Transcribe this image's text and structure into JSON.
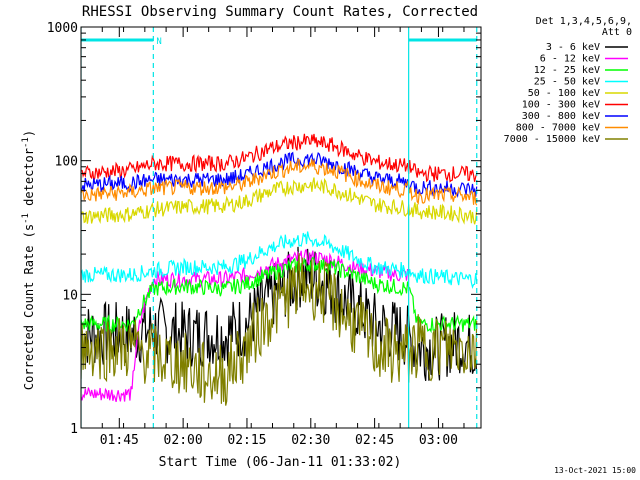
{
  "chart_data": {
    "type": "line",
    "title": "RHESSI Observing Summary Count Rates, Corrected",
    "xlabel": "Start Time (06-Jan-11 01:33:02)",
    "ylabel": "Corrected Count Rate (s⁻¹ detector⁻¹)",
    "ylabel_base": "Corrected Count Rate (s",
    "ylabel_sup1": "-1",
    "ylabel_mid": " detector",
    "ylabel_sup2": "-1",
    "ylabel_end": ")",
    "yscale": "log",
    "xlim": [
      "01:36",
      "03:10"
    ],
    "ylim": [
      1,
      1000
    ],
    "x_ticks": [
      "01:45",
      "02:00",
      "02:15",
      "02:30",
      "02:45",
      "03:00"
    ],
    "y_ticks": [
      {
        "label": "1",
        "value": 1
      },
      {
        "label": "10",
        "value": 10
      },
      {
        "label": "100",
        "value": 100
      },
      {
        "label": "1000",
        "value": 1000
      }
    ],
    "legend_header": [
      "Det 1,3,4,5,6,9,",
      "Att 0"
    ],
    "legend_position": "right",
    "night_markers": [
      {
        "time": "01:36",
        "color": "#00e5e5",
        "style": "solid"
      },
      {
        "time": "01:53",
        "color": "#00e5e5",
        "style": "dashed"
      },
      {
        "time": "02:53",
        "color": "#00e5e5",
        "style": "solid"
      },
      {
        "time": "03:09",
        "color": "#00e5e5",
        "style": "dashed"
      }
    ],
    "night_bars": [
      {
        "start": "01:36",
        "end": "01:53",
        "value": 800
      },
      {
        "start": "02:53",
        "end": "03:09",
        "value": 800
      }
    ],
    "annotation": "N",
    "annotation_time": "01:53",
    "series": [
      {
        "name": "3 - 6 keV",
        "color": "#000000",
        "line": "black",
        "points": [
          [
            "01:36",
            5
          ],
          [
            "01:48",
            5
          ],
          [
            "01:53",
            5.5
          ],
          [
            "02:00",
            5
          ],
          [
            "02:05",
            5
          ],
          [
            "02:10",
            5
          ],
          [
            "02:15",
            6
          ],
          [
            "02:20",
            9
          ],
          [
            "02:25",
            12
          ],
          [
            "02:28",
            14
          ],
          [
            "02:32",
            13
          ],
          [
            "02:38",
            9
          ],
          [
            "02:45",
            6
          ],
          [
            "02:52",
            5
          ],
          [
            "02:55",
            4
          ],
          [
            "03:00",
            4
          ],
          [
            "03:05",
            4.5
          ],
          [
            "03:09",
            4
          ]
        ]
      },
      {
        "name": "6 - 12 keV",
        "color": "#ff00ff",
        "line": "magenta",
        "points": [
          [
            "01:36",
            1.8
          ],
          [
            "01:48",
            1.8
          ],
          [
            "01:53",
            13
          ],
          [
            "02:00",
            13
          ],
          [
            "02:10",
            13
          ],
          [
            "02:15",
            14
          ],
          [
            "02:20",
            16
          ],
          [
            "02:25",
            18
          ],
          [
            "02:30",
            19
          ],
          [
            "02:35",
            18
          ],
          [
            "02:40",
            16
          ],
          [
            "02:45",
            15
          ],
          [
            "02:50",
            14
          ],
          [
            "02:53",
            14
          ]
        ]
      },
      {
        "name": "12 - 25 keV",
        "color": "#00ff00",
        "line": "green",
        "points": [
          [
            "01:36",
            6
          ],
          [
            "01:48",
            6
          ],
          [
            "01:53",
            11
          ],
          [
            "02:00",
            11.5
          ],
          [
            "02:10",
            11
          ],
          [
            "02:15",
            12
          ],
          [
            "02:20",
            14
          ],
          [
            "02:25",
            16
          ],
          [
            "02:30",
            17
          ],
          [
            "02:35",
            16
          ],
          [
            "02:40",
            14
          ],
          [
            "02:45",
            12
          ],
          [
            "02:53",
            11
          ],
          [
            "02:55",
            6
          ],
          [
            "03:05",
            6
          ],
          [
            "03:09",
            6
          ]
        ]
      },
      {
        "name": "25 - 50 keV",
        "color": "#00ffff",
        "line": "cyan",
        "points": [
          [
            "01:36",
            14
          ],
          [
            "01:48",
            14
          ],
          [
            "01:53",
            15
          ],
          [
            "02:00",
            16
          ],
          [
            "02:10",
            16
          ],
          [
            "02:15",
            18
          ],
          [
            "02:20",
            22
          ],
          [
            "02:25",
            25
          ],
          [
            "02:30",
            26
          ],
          [
            "02:35",
            23
          ],
          [
            "02:40",
            19
          ],
          [
            "02:45",
            16
          ],
          [
            "02:53",
            15
          ],
          [
            "02:55",
            14
          ],
          [
            "03:05",
            13
          ],
          [
            "03:09",
            13
          ]
        ]
      },
      {
        "name": "50 - 100 keV",
        "color": "#d8d800",
        "line": "yellow",
        "points": [
          [
            "01:36",
            38
          ],
          [
            "01:48",
            40
          ],
          [
            "01:53",
            43
          ],
          [
            "02:00",
            45
          ],
          [
            "02:10",
            46
          ],
          [
            "02:15",
            50
          ],
          [
            "02:20",
            58
          ],
          [
            "02:25",
            64
          ],
          [
            "02:30",
            66
          ],
          [
            "02:35",
            62
          ],
          [
            "02:40",
            54
          ],
          [
            "02:45",
            47
          ],
          [
            "02:53",
            44
          ],
          [
            "02:55",
            42
          ],
          [
            "03:05",
            40
          ],
          [
            "03:09",
            38
          ]
        ]
      },
      {
        "name": "100 - 300 keV",
        "color": "#ff0000",
        "line": "red",
        "points": [
          [
            "01:36",
            80
          ],
          [
            "01:48",
            85
          ],
          [
            "01:53",
            95
          ],
          [
            "02:00",
            95
          ],
          [
            "02:10",
            95
          ],
          [
            "02:15",
            105
          ],
          [
            "02:20",
            122
          ],
          [
            "02:25",
            135
          ],
          [
            "02:30",
            140
          ],
          [
            "02:35",
            130
          ],
          [
            "02:40",
            112
          ],
          [
            "02:45",
            98
          ],
          [
            "02:53",
            90
          ],
          [
            "02:55",
            80
          ],
          [
            "03:05",
            80
          ],
          [
            "03:09",
            78
          ]
        ]
      },
      {
        "name": "300 - 800 keV",
        "color": "#0000ff",
        "line": "blue",
        "points": [
          [
            "01:36",
            65
          ],
          [
            "01:48",
            68
          ],
          [
            "01:53",
            72
          ],
          [
            "02:00",
            72
          ],
          [
            "02:10",
            72
          ],
          [
            "02:15",
            78
          ],
          [
            "02:20",
            90
          ],
          [
            "02:25",
            100
          ],
          [
            "02:30",
            103
          ],
          [
            "02:35",
            96
          ],
          [
            "02:40",
            84
          ],
          [
            "02:45",
            74
          ],
          [
            "02:53",
            68
          ],
          [
            "02:55",
            63
          ],
          [
            "03:05",
            62
          ],
          [
            "03:09",
            60
          ]
        ]
      },
      {
        "name": "800 - 7000 keV",
        "color": "#ff8c00",
        "line": "orange",
        "points": [
          [
            "01:36",
            55
          ],
          [
            "01:48",
            58
          ],
          [
            "01:53",
            62
          ],
          [
            "02:00",
            63
          ],
          [
            "02:10",
            63
          ],
          [
            "02:15",
            68
          ],
          [
            "02:20",
            80
          ],
          [
            "02:25",
            88
          ],
          [
            "02:30",
            92
          ],
          [
            "02:35",
            86
          ],
          [
            "02:40",
            75
          ],
          [
            "02:45",
            65
          ],
          [
            "02:53",
            60
          ],
          [
            "02:55",
            55
          ],
          [
            "03:05",
            55
          ],
          [
            "03:09",
            52
          ]
        ]
      },
      {
        "name": "7000 - 15000 keV",
        "color": "#808000",
        "line": "olive",
        "points": [
          [
            "01:36",
            4
          ],
          [
            "01:48",
            4
          ],
          [
            "01:53",
            3.5
          ],
          [
            "02:00",
            3
          ],
          [
            "02:05",
            2.5
          ],
          [
            "02:10",
            2.5
          ],
          [
            "02:15",
            4
          ],
          [
            "02:20",
            7
          ],
          [
            "02:25",
            10
          ],
          [
            "02:28",
            12
          ],
          [
            "02:32",
            11
          ],
          [
            "02:38",
            7
          ],
          [
            "02:45",
            4
          ],
          [
            "02:52",
            3.5
          ],
          [
            "02:55",
            4
          ],
          [
            "03:00",
            4
          ],
          [
            "03:05",
            4
          ],
          [
            "03:09",
            4
          ]
        ]
      }
    ],
    "timestamp": "13-Oct-2021 15:00"
  }
}
